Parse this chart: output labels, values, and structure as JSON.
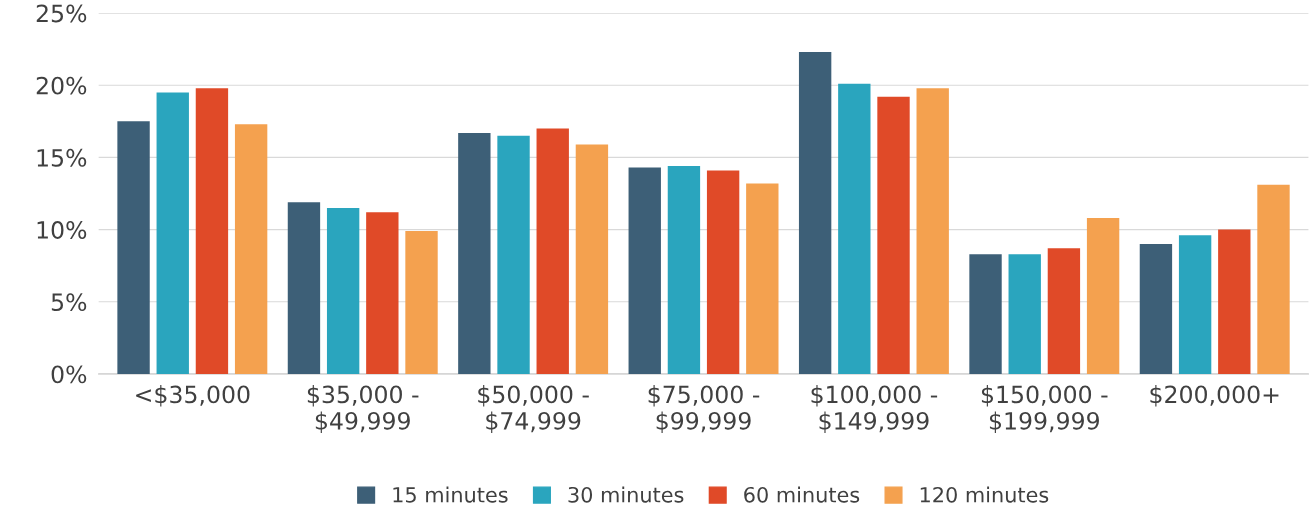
{
  "chart_data": {
    "type": "bar",
    "categories": [
      "<$35,000",
      "$35,000 -\n$49,999",
      "$50,000 -\n$74,999",
      "$75,000 -\n$99,999",
      "$100,000 -\n$149,999",
      "$150,000 -\n$199,999",
      "$200,000+"
    ],
    "series": [
      {
        "name": "15 minutes",
        "color": "#3d5f77",
        "values": [
          17.5,
          11.9,
          16.7,
          14.3,
          22.3,
          8.3,
          9.0
        ]
      },
      {
        "name": "30 minutes",
        "color": "#2aa5be",
        "values": [
          19.5,
          11.5,
          16.5,
          14.4,
          20.1,
          8.3,
          9.6
        ]
      },
      {
        "name": "60 minutes",
        "color": "#e04a28",
        "values": [
          19.8,
          11.2,
          17.0,
          14.1,
          19.2,
          8.7,
          10.0
        ]
      },
      {
        "name": "120 minutes",
        "color": "#f4a14f",
        "values": [
          17.3,
          9.9,
          15.9,
          13.2,
          19.8,
          10.8,
          13.1
        ]
      }
    ],
    "ylim": [
      0,
      25
    ],
    "yticks": [
      {
        "value": 0,
        "label": "0%"
      },
      {
        "value": 5,
        "label": "5%"
      },
      {
        "value": 10,
        "label": "10%"
      },
      {
        "value": 15,
        "label": "15%"
      },
      {
        "value": 20,
        "label": "20%"
      },
      {
        "value": 25,
        "label": "25%"
      }
    ],
    "grid": "y",
    "legend": "bottom"
  }
}
